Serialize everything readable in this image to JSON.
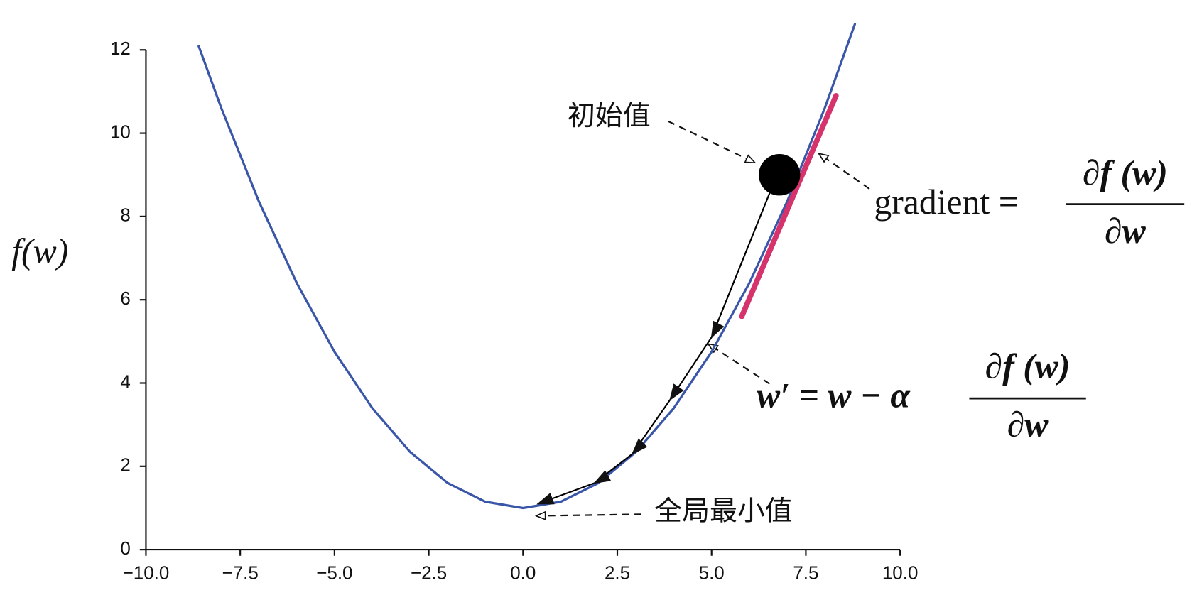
{
  "chart_data": {
    "type": "line",
    "ylabel": "f(w)",
    "xlim": [
      -10,
      10
    ],
    "ylim": [
      0,
      12
    ],
    "xticks": [
      {
        "value": -10,
        "label": "−10.0"
      },
      {
        "value": -7.5,
        "label": "−7.5"
      },
      {
        "value": -5,
        "label": "−5.0"
      },
      {
        "value": -2.5,
        "label": "−2.5"
      },
      {
        "value": 0,
        "label": "0.0"
      },
      2.5,
      {
        "value": 5,
        "label": "5.0"
      },
      7.5,
      {
        "value": 10,
        "label": "10.0"
      }
    ],
    "yticks": [
      0,
      2,
      4,
      6,
      8,
      10,
      12
    ],
    "series": [
      {
        "color": "#3a56a8",
        "width": 3,
        "x": [
          -8.6,
          -8,
          -7,
          -6,
          -5,
          -4,
          -3,
          -2,
          -1,
          0,
          1,
          2,
          3,
          4,
          5,
          6,
          7,
          8,
          8.8
        ],
        "values": [
          12.09,
          10.6,
          8.35,
          6.4,
          4.75,
          3.4,
          2.35,
          1.6,
          1.15,
          1,
          1.15,
          1.6,
          2.35,
          3.4,
          4.75,
          6.4,
          8.35,
          10.6,
          12.62
        ]
      },
      {
        "color": "#d6336c",
        "width": 7,
        "x": [
          5.8,
          8.3
        ],
        "values": [
          5.6,
          10.9
        ]
      },
      {
        "color": "#000000",
        "width": 2,
        "arrows": true,
        "x": [
          6.6,
          5,
          3.9,
          2.9,
          1.9,
          0.4
        ],
        "values": [
          8.7,
          5.1,
          3.6,
          2.3,
          1.6,
          1.1
        ]
      },
      {
        "color": "#000000",
        "marker": "circle",
        "x": [
          6.8
        ],
        "values": [
          9
        ]
      }
    ],
    "annotations": [
      {
        "text": "初始值"
      },
      {
        "text": "全局最小值"
      },
      {
        "text": "gradient ="
      },
      {
        "text": "∂f (w)"
      },
      {
        "text": "∂w"
      },
      {
        "text": "w′ = w − α"
      },
      {
        "text": "∂f (w)"
      },
      {
        "text": "∂w"
      }
    ]
  }
}
